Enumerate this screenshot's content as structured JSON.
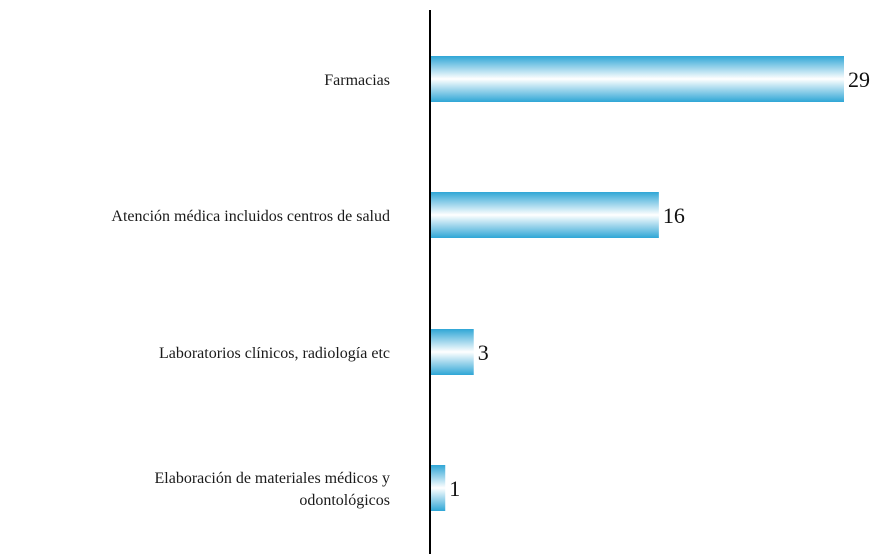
{
  "chart_data": {
    "type": "bar",
    "orientation": "horizontal",
    "categories": [
      [
        "Farmacias"
      ],
      [
        "Atención médica incluidos centros de salud"
      ],
      [
        "Laboratorios clínicos, radiología etc"
      ],
      [
        "Elaboración de materiales médicos y",
        "odontológicos"
      ]
    ],
    "values": [
      29,
      16,
      3,
      1
    ],
    "value_labels": [
      "29",
      "16",
      "3",
      "1"
    ],
    "xlim": [
      0,
      29
    ],
    "grid": false,
    "legend": false,
    "title": "",
    "xlabel": "",
    "ylabel": "",
    "colors": {
      "bar_edge": "#2fa6d6",
      "bar_mid": "#ffffff",
      "axis": "#000000"
    }
  }
}
